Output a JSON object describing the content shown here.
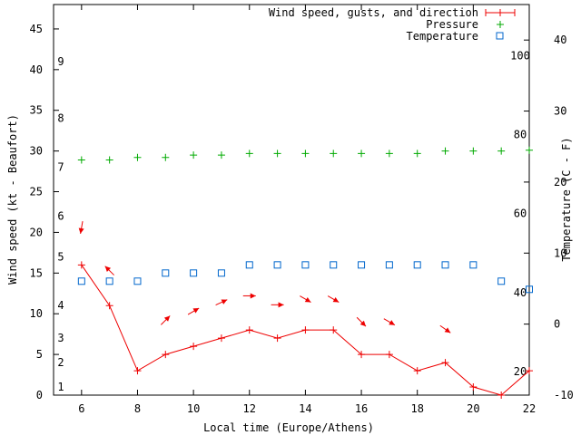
{
  "chart_data": {
    "type": "line",
    "title": "",
    "xlabel": "Local time (Europe/Athens)",
    "ylabel": "Wind speed (kt - Beaufort)",
    "y2label": "Temperature (C - F)",
    "xlim": [
      5,
      22
    ],
    "ylim": [
      0,
      48
    ],
    "y2lim": [
      -10,
      45
    ],
    "xticks": [
      6,
      8,
      10,
      12,
      14,
      16,
      18,
      20,
      22
    ],
    "yticks": [
      0,
      5,
      10,
      15,
      20,
      25,
      30,
      35,
      40,
      45
    ],
    "y2ticks": [
      -10,
      0,
      10,
      20,
      30,
      40
    ],
    "fahrenheit_labels": [
      {
        "label": "20",
        "c": -6.7
      },
      {
        "label": "40",
        "c": 4.4
      },
      {
        "label": "60",
        "c": 15.6
      },
      {
        "label": "80",
        "c": 26.7
      },
      {
        "label": "100",
        "c": 37.8
      }
    ],
    "beaufort_labels": [
      {
        "label": "1",
        "kt": 1
      },
      {
        "label": "2",
        "kt": 4
      },
      {
        "label": "3",
        "kt": 7
      },
      {
        "label": "4",
        "kt": 11
      },
      {
        "label": "5",
        "kt": 17
      },
      {
        "label": "6",
        "kt": 22
      },
      {
        "label": "7",
        "kt": 28
      },
      {
        "label": "8",
        "kt": 34
      },
      {
        "label": "9",
        "kt": 41
      }
    ],
    "legend_position": "top-right",
    "series": [
      {
        "name": "Wind speed, gusts, and direction",
        "color": "#ee0000",
        "marker": "plus",
        "x": [
          6,
          7,
          8,
          9,
          10,
          11,
          12,
          13,
          14,
          15,
          16,
          17,
          18,
          19,
          20,
          21,
          22
        ],
        "values": [
          16,
          11,
          3,
          5,
          6,
          7,
          8,
          7,
          8,
          8,
          5,
          5,
          3,
          4,
          1,
          0,
          3
        ]
      },
      {
        "name": "Pressure",
        "color": "#00aa00",
        "marker": "plus",
        "x": [
          6,
          7,
          8,
          9,
          10,
          11,
          12,
          13,
          14,
          15,
          16,
          17,
          18,
          19,
          20,
          21,
          22
        ],
        "values": [
          28.9,
          28.9,
          29.2,
          29.2,
          29.5,
          29.5,
          29.7,
          29.7,
          29.7,
          29.7,
          29.7,
          29.7,
          29.7,
          30.0,
          30.0,
          30.0,
          30.1
        ]
      },
      {
        "name": "Temperature",
        "color": "#0066cc",
        "marker": "square",
        "x": [
          6,
          7,
          8,
          9,
          10,
          11,
          12,
          13,
          14,
          15,
          16,
          17,
          18,
          19,
          20,
          21,
          22
        ],
        "values": [
          14,
          14,
          14,
          15,
          15,
          15,
          16,
          16,
          16,
          16,
          16,
          16,
          16,
          16,
          16,
          14,
          13
        ]
      }
    ],
    "wind_direction_arrows": [
      {
        "x": 6,
        "y": 20.6,
        "direction_deg": 10
      },
      {
        "x": 7,
        "y": 15.3,
        "direction_deg": 135
      },
      {
        "x": 9,
        "y": 9.2,
        "direction_deg": 225
      },
      {
        "x": 10,
        "y": 10.3,
        "direction_deg": 240
      },
      {
        "x": 11,
        "y": 11.4,
        "direction_deg": 245
      },
      {
        "x": 12,
        "y": 12.2,
        "direction_deg": 270
      },
      {
        "x": 13,
        "y": 11.1,
        "direction_deg": 270
      },
      {
        "x": 14,
        "y": 11.8,
        "direction_deg": 300
      },
      {
        "x": 15,
        "y": 11.8,
        "direction_deg": 300
      },
      {
        "x": 16,
        "y": 9.0,
        "direction_deg": 315
      },
      {
        "x": 17,
        "y": 9.0,
        "direction_deg": 300
      },
      {
        "x": 19,
        "y": 8.1,
        "direction_deg": 305
      }
    ]
  }
}
